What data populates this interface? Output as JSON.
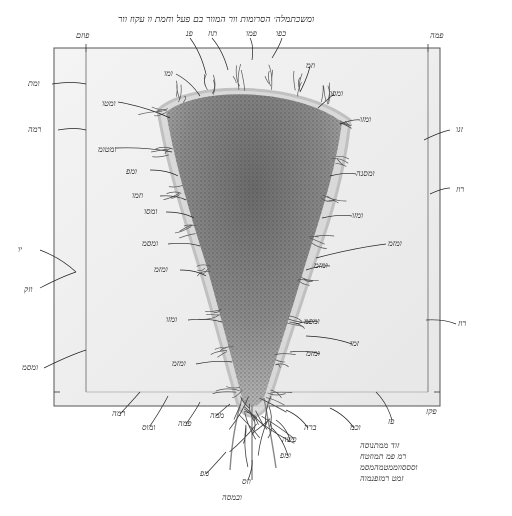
{
  "title": "ומשכתמלה׳ הסרומות וור המוור בם פעל וחמת וו עקוז וור",
  "labels": {
    "top_left": "פוזם",
    "top_right": "פמה",
    "top_a": "פנ",
    "top_b": "תוז",
    "top_c": "פמו",
    "top_d": "כפו",
    "left_1": "ומת",
    "left_2": "רמה",
    "left_3": "יו",
    "left_4": "וזק",
    "left_5": "ומסמ",
    "right_1": "זגו",
    "right_2": "רוז",
    "right_3": "רוז",
    "right_4": "פז",
    "right_5": "פקז",
    "right_6": "ברה",
    "bottom_1": "רמה",
    "bottom_2": "ומוס",
    "bottom_3": "פמה",
    "bottom_4": "ממה",
    "bottom_5": "פשה",
    "bottom_6": "ומפ",
    "bottom_7": "מפ",
    "bottom_8": "וזס",
    "bottom_9": "ובמסה",
    "bottom_right": "וכמ",
    "inner_l1": "ומו",
    "inner_l2": "ומטו",
    "inner_l3": "ומטומ",
    "inner_l4": "ומפ",
    "inner_l5": "וזמו",
    "inner_l6": "ומסו",
    "inner_l7": "ומסמ",
    "inner_l8": "ומזמ",
    "inner_l9": "ומזו",
    "inner_l10": "ומזמ",
    "inner_r1": "וזמ",
    "inner_r2": "ומפו",
    "inner_r3": "ומזו",
    "inner_r4": "ומסנה",
    "inner_r5": "ומזו",
    "inner_r6": "ומזמ",
    "inner_r7": "ומזמ",
    "inner_r8": "ומפמ",
    "inner_r9": "ומזמ",
    "inner_r10": "זמו"
  },
  "note": [
    "זוד ממתנוסה",
    "רמ פמ תמוזטח",
    "וסססווממטמהמסמ",
    "זמט רמזפנמוה"
  ]
}
